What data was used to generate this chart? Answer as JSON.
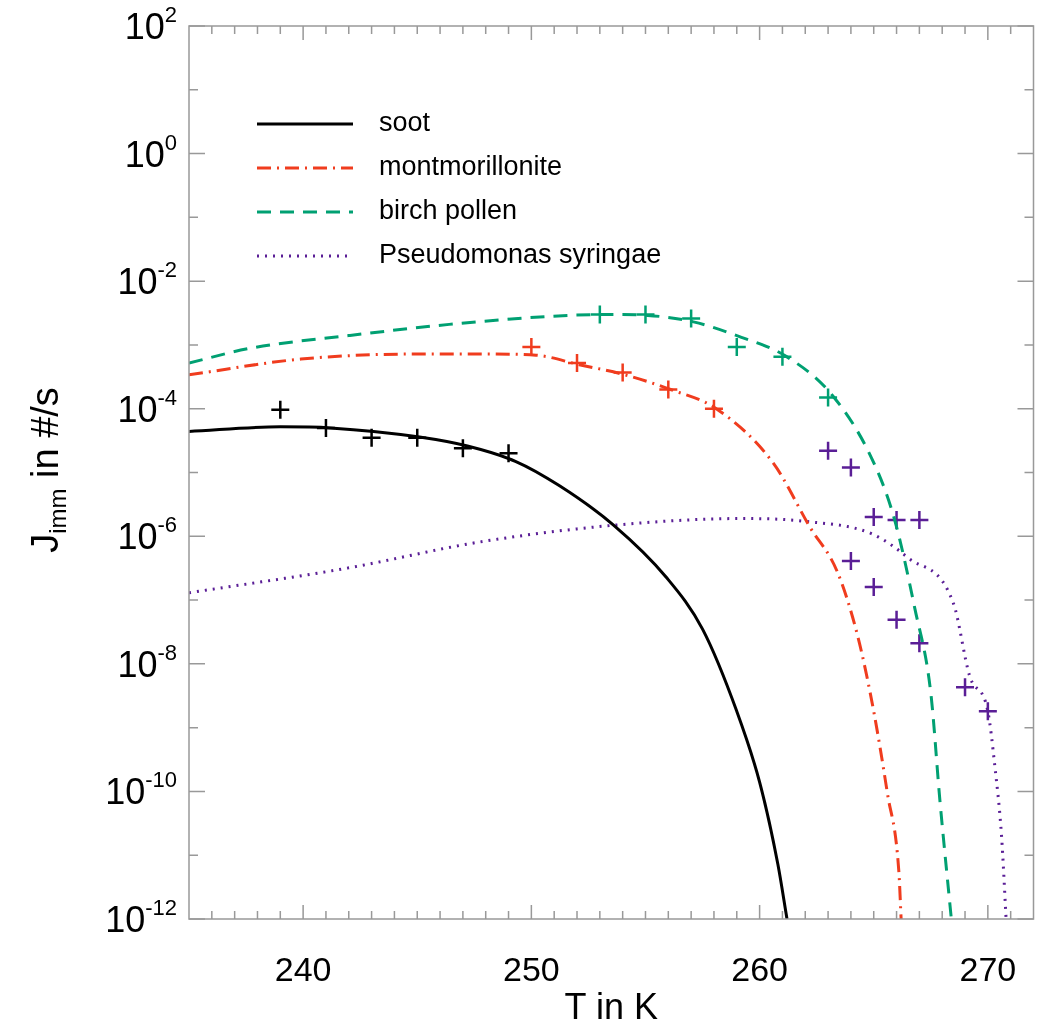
{
  "chart_data": {
    "type": "line",
    "xlabel": "T in K",
    "ylabel": "J$_{imm}$ in #/s",
    "log": "y",
    "legend": "top left",
    "xlim": [
      235,
      272
    ],
    "ylim": [
      1e-12,
      100
    ],
    "xticks": [
      {
        "value": 236,
        "label": null
      },
      {
        "value": 237,
        "label": null
      },
      {
        "value": 238,
        "label": null
      },
      {
        "value": 239,
        "label": null
      },
      240,
      {
        "value": 241,
        "label": null
      },
      {
        "value": 242,
        "label": null
      },
      {
        "value": 243,
        "label": null
      },
      {
        "value": 244,
        "label": null
      },
      {
        "value": 245,
        "label": null
      },
      {
        "value": 246,
        "label": null
      },
      {
        "value": 247,
        "label": null
      },
      {
        "value": 248,
        "label": null
      },
      {
        "value": 249,
        "label": null
      },
      250,
      {
        "value": 251,
        "label": null
      },
      {
        "value": 252,
        "label": null
      },
      {
        "value": 253,
        "label": null
      },
      {
        "value": 254,
        "label": null
      },
      {
        "value": 255,
        "label": null
      },
      {
        "value": 256,
        "label": null
      },
      {
        "value": 257,
        "label": null
      },
      {
        "value": 258,
        "label": null
      },
      {
        "value": 259,
        "label": null
      },
      260,
      {
        "value": 261,
        "label": null
      },
      {
        "value": 262,
        "label": null
      },
      {
        "value": 263,
        "label": null
      },
      {
        "value": 264,
        "label": null
      },
      {
        "value": 265,
        "label": null
      },
      {
        "value": 266,
        "label": null
      },
      {
        "value": 267,
        "label": null
      },
      {
        "value": 268,
        "label": null
      },
      {
        "value": 269,
        "label": null
      },
      270,
      {
        "value": 271,
        "label": null
      }
    ],
    "yticks": [
      {
        "value": 1e-12,
        "label": "10$^{-12}$"
      },
      {
        "value": 1e-11,
        "label": null
      },
      {
        "value": 1e-10,
        "label": "10$^{-10}$"
      },
      {
        "value": 1e-09,
        "label": null
      },
      {
        "value": 1e-08,
        "label": "10$^{-8}$"
      },
      {
        "value": 1e-07,
        "label": null
      },
      {
        "value": 1e-06,
        "label": "10$^{-6}$"
      },
      {
        "value": 1e-05,
        "label": null
      },
      {
        "value": 0.0001,
        "label": "10$^{-4}$"
      },
      {
        "value": 0.001,
        "label": null
      },
      {
        "value": 0.01,
        "label": "10$^{-2}$"
      },
      {
        "value": 0.1,
        "label": null
      },
      {
        "value": 1,
        "label": "10$^{0}$"
      },
      {
        "value": 10,
        "label": null
      },
      {
        "value": 100,
        "label": "10$^{2}$"
      }
    ],
    "series": [
      {
        "name": "soot",
        "type": "line",
        "color": "#000000",
        "line_style": "solid",
        "x": [
          235,
          239,
          241.2,
          245.1,
          247.2,
          249.3,
          251.2,
          253.6,
          255.9,
          257.5,
          259.0,
          260.0,
          260.8,
          261.2
        ],
        "values": [
          4.4e-05,
          5.2e-05,
          5e-05,
          3.6e-05,
          2.6e-05,
          1.5e-05,
          6.3e-06,
          1.5e-06,
          2.3e-07,
          3.5e-08,
          1.8e-09,
          1.4e-10,
          7.2e-12,
          1e-12
        ]
      },
      {
        "name": "montmorillonite",
        "type": "line",
        "color": "#f03c1e",
        "line_style": "dashdot",
        "x": [
          235,
          239.9,
          245,
          247.9,
          250.2,
          252.1,
          254.1,
          256.1,
          258.1,
          260.6,
          262.2,
          263.4,
          264.3,
          265.0,
          265.6,
          266.1,
          266.2
        ],
        "values": [
          0.00034,
          0.0006,
          0.00072,
          0.00072,
          0.00069,
          0.00049,
          0.00034,
          0.0002,
          0.0001,
          1.4e-05,
          1.4e-06,
          2.8e-07,
          2.7e-08,
          1.8e-09,
          9.3e-11,
          5.6e-12,
          1e-12
        ]
      },
      {
        "name": "birch pollen",
        "type": "line",
        "color": "#00a072",
        "line_style": "dashed",
        "x": [
          235,
          237.7,
          242,
          246.4,
          250.8,
          253.2,
          255.1,
          257.1,
          259,
          261.2,
          263.2,
          264.9,
          265.9,
          266.8,
          267.5,
          267.9,
          268.4
        ],
        "values": [
          0.00052,
          0.00089,
          0.0014,
          0.0021,
          0.0028,
          0.003,
          0.0029,
          0.0023,
          0.0014,
          0.00065,
          0.00016,
          1.7e-05,
          1.9e-06,
          7.4e-08,
          3.5e-09,
          7.2e-11,
          1e-12
        ]
      },
      {
        "name": "Pseudomonas syringae",
        "type": "line",
        "color": "#5a1e96",
        "line_style": "dotted",
        "x": [
          235,
          242,
          247.7,
          253.7,
          259.3,
          262.1,
          264.9,
          266.5,
          268.5,
          269.2,
          270,
          270.3,
          270.6,
          270.8
        ],
        "values": [
          1.3e-07,
          3.2e-07,
          8.1e-07,
          1.5e-06,
          1.9e-06,
          1.7e-06,
          1.1e-06,
          4.6e-07,
          8.7e-08,
          6.5e-09,
          1.8e-09,
          2.6e-10,
          2e-11,
          1e-12
        ]
      },
      {
        "type": "scatter",
        "marker": "cross",
        "color": "#000000",
        "x": [
          239,
          241,
          243,
          245,
          247,
          249
        ],
        "values": [
          9.6e-05,
          5e-05,
          3.5e-05,
          3.5e-05,
          2.4e-05,
          2e-05
        ]
      },
      {
        "type": "scatter",
        "marker": "cross",
        "color": "#f03c1e",
        "x": [
          250,
          252,
          254,
          256,
          258
        ],
        "values": [
          0.00093,
          0.00052,
          0.00037,
          0.0002,
          0.0001
        ]
      },
      {
        "type": "scatter",
        "marker": "cross",
        "color": "#00a072",
        "x": [
          253,
          255,
          257,
          259,
          261,
          263
        ],
        "values": [
          0.003,
          0.003,
          0.0026,
          0.00093,
          0.00065,
          0.00015
        ]
      },
      {
        "type": "scatter",
        "marker": "cross",
        "color": "#5a1e96",
        "x": [
          263,
          264,
          265,
          266,
          267,
          264,
          265,
          266,
          267,
          269,
          270
        ],
        "values": [
          2.2e-05,
          1.2e-05,
          2e-06,
          1.8e-06,
          1.8e-06,
          4.1e-07,
          1.6e-07,
          4.9e-08,
          2.1e-08,
          4.3e-09,
          1.8e-09
        ]
      }
    ]
  }
}
